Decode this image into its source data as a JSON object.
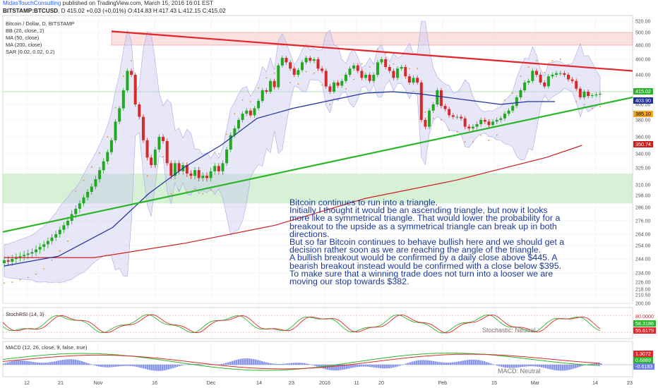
{
  "header": {
    "author": "MidasTouchConsulting",
    "published": "published on TradingView.com, March 15, 2016 16:01 EST",
    "symbol": "BITSTAMP:BTCUSD",
    "interval": "D",
    "last": "415.02",
    "change": "+0.03 (+0.01%)",
    "ohlc": "O:414.83 H:417.43 L:412.15 C:415.02"
  },
  "legend": {
    "title": "Bitcoin / Dollar, D, BITSTAMP",
    "bb": "BB (20, close, 2)",
    "ma50": "MA (50, close)",
    "ma200": "MA (200, close)",
    "sar": "SAR (0.02, 0.02, 0.2)"
  },
  "annotation": [
    "Bitcoin continues to run into a triangle.",
    "Initially I thought it would be an ascending triangle, but now it looks",
    "more like a symmetrical triangle. That would lower the probability for a",
    "breakout to the upside as a symmetrical triangle can break up in both",
    "directions.",
    "But so far Bitcoin continues to behave bullish here and we should get a",
    "decision rather soon as we are reaching the angle of the triangle.",
    "A bullish breakout would be confirmed by a daily close above $445. A",
    "bearish breakout instead would be confirmed with a close below $395.",
    "To make sure that a winning trade does not turn into a looser we are",
    "moving our stop towards $382."
  ],
  "stoch": {
    "label": "StochRSI (14, 3)",
    "status": "Stochastic: Neutral",
    "tags": [
      "80.0000",
      "58.3186",
      "55.6179"
    ]
  },
  "macd": {
    "label": "MACD (12, 26, close, 9, false, true)",
    "status": "MACD: Neutral",
    "tags": [
      "1.3072",
      "0.6889",
      "-0.6183"
    ]
  },
  "price_tags": [
    "415.02",
    "403.90",
    "385.10",
    "350.74"
  ],
  "colors": {
    "up": "#22a922",
    "down": "#d62a2a",
    "ma50": "#1c2f9c",
    "ma200": "#cc2020",
    "band": "#c9c9f0",
    "resistance": "#e0262b",
    "support": "#2bb52b",
    "sar": "#e08a10"
  },
  "chart_data": {
    "type": "candlestick",
    "title": "Bitcoin / Dollar, D, BITSTAMP",
    "y_ticks": [
      200,
      210.5,
      218,
      226,
      234,
      244,
      254,
      264,
      276,
      286,
      298,
      310,
      325,
      340,
      360,
      380,
      400,
      420,
      440,
      460,
      480,
      500,
      520
    ],
    "ylim": [
      200,
      520
    ],
    "x_ticks": [
      "12",
      "21",
      "Nov",
      "16",
      "Dec",
      "14",
      "23",
      "2016",
      "11",
      "20",
      "Feb",
      "15",
      "Mar",
      "14",
      "23"
    ],
    "close": [
      243,
      242,
      244,
      245,
      246,
      247,
      248,
      249,
      251,
      253,
      255,
      258,
      261,
      264,
      268,
      272,
      276,
      281,
      285,
      290,
      296,
      302,
      308,
      315,
      323,
      332,
      342,
      356,
      378,
      395,
      420,
      445,
      440,
      400,
      384,
      356,
      336,
      328,
      345,
      360,
      355,
      330,
      318,
      330,
      322,
      328,
      320,
      318,
      323,
      316,
      318,
      316,
      322,
      327,
      322,
      330,
      345,
      362,
      370,
      380,
      388,
      392,
      386,
      395,
      405,
      420,
      418,
      432,
      424,
      452,
      462,
      456,
      448,
      440,
      446,
      456,
      462,
      458,
      460,
      448,
      445,
      425,
      418,
      430,
      426,
      432,
      440,
      448,
      452,
      445,
      436,
      440,
      432,
      440,
      456,
      460,
      450,
      445,
      436,
      448,
      450,
      438,
      430,
      436,
      430,
      380,
      372,
      392,
      400,
      420,
      398,
      394,
      386,
      384,
      384,
      382,
      372,
      370,
      372,
      375,
      380,
      378,
      374,
      378,
      380,
      382,
      388,
      392,
      398,
      410,
      420,
      430,
      432,
      445,
      440,
      430,
      425,
      438,
      440,
      442,
      442,
      440,
      434,
      432,
      422,
      410,
      418,
      412,
      413,
      414,
      415
    ],
    "ma50_points": [
      [
        0,
        239
      ],
      [
        30,
        246
      ],
      [
        60,
        270
      ],
      [
        80,
        300
      ],
      [
        100,
        326
      ],
      [
        120,
        350
      ],
      [
        140,
        382
      ],
      [
        160,
        395
      ],
      [
        185,
        408
      ],
      [
        200,
        416
      ],
      [
        215,
        418
      ],
      [
        230,
        415
      ],
      [
        245,
        410
      ],
      [
        260,
        405
      ],
      [
        275,
        400
      ],
      [
        290,
        404
      ],
      [
        305,
        404
      ]
    ],
    "ma200_points": [
      [
        0,
        245
      ],
      [
        50,
        245
      ],
      [
        100,
        256
      ],
      [
        150,
        272
      ],
      [
        200,
        295
      ],
      [
        250,
        314
      ],
      [
        300,
        336
      ],
      [
        320,
        350
      ]
    ],
    "resistance_line": [
      [
        45,
        502
      ],
      [
        320,
        445
      ]
    ],
    "support_line": [
      [
        0,
        266
      ],
      [
        330,
        410
      ]
    ],
    "resistance_zone": [
      480,
      500
    ],
    "support_zone": [
      290,
      320
    ],
    "series": [
      {
        "name": "MA (50, close)"
      },
      {
        "name": "MA (200, close)"
      }
    ]
  }
}
